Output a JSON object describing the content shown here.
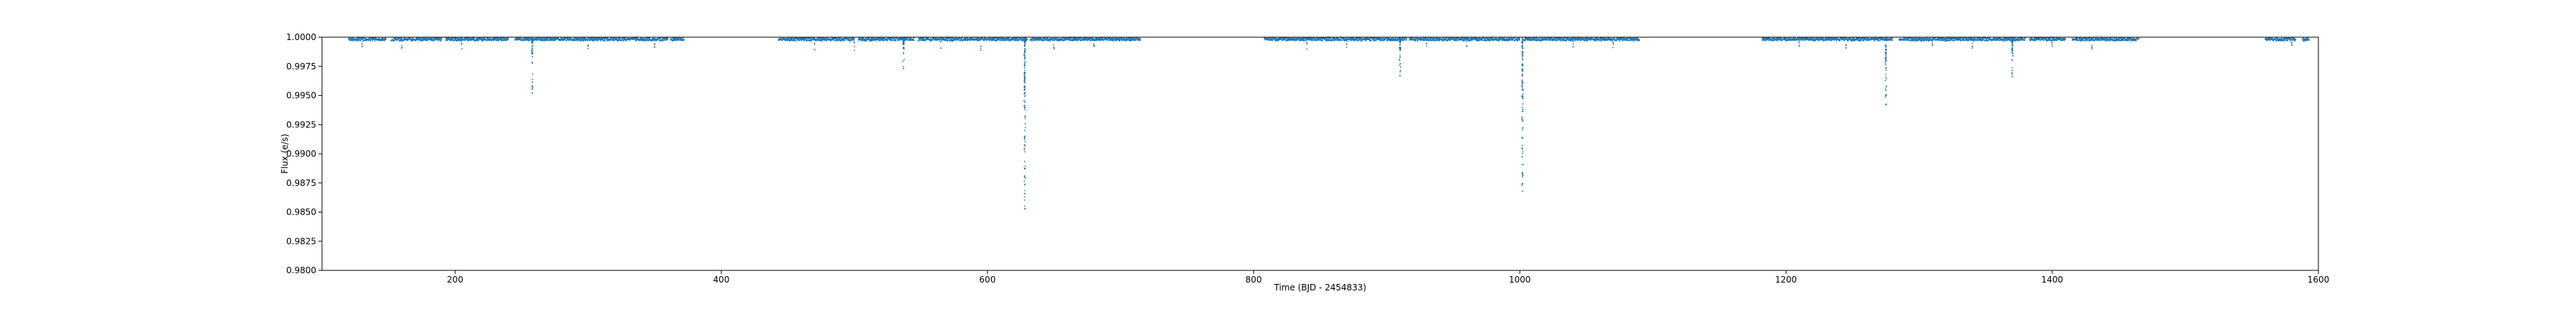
{
  "chart_data": {
    "type": "scatter",
    "title": "",
    "xlabel": "Time (BJD - 2454833)",
    "ylabel": "Flux (e/s)",
    "xlim": [
      100,
      1600
    ],
    "ylim": [
      0.98,
      1.0
    ],
    "x_ticks": [
      200,
      400,
      600,
      800,
      1000,
      1200,
      1400,
      1600
    ],
    "x_tick_labels": [
      "200",
      "400",
      "600",
      "800",
      "1000",
      "1200",
      "1400",
      "1600"
    ],
    "y_ticks": [
      0.98,
      0.9825,
      0.985,
      0.9875,
      0.99,
      0.9925,
      0.995,
      0.9975,
      1.0
    ],
    "y_tick_labels": [
      "0.9800",
      "0.9825",
      "0.9850",
      "0.9875",
      "0.9900",
      "0.9925",
      "0.9950",
      "0.9975",
      "1.0000"
    ],
    "grid": false,
    "legend": "none",
    "marker_color": "#1f77b4",
    "observation_segments": [
      [
        120,
        148
      ],
      [
        152,
        190
      ],
      [
        193,
        240
      ],
      [
        245,
        300
      ],
      [
        300,
        360
      ],
      [
        362,
        372
      ],
      [
        443,
        500
      ],
      [
        503,
        545
      ],
      [
        548,
        630
      ],
      [
        632,
        715
      ],
      [
        808,
        915
      ],
      [
        917,
        1000
      ],
      [
        1003,
        1090
      ],
      [
        1182,
        1280
      ],
      [
        1285,
        1380
      ],
      [
        1383,
        1410
      ],
      [
        1415,
        1465
      ],
      [
        1560,
        1583
      ],
      [
        1588,
        1593
      ]
    ],
    "baseline_flux": 0.99995,
    "transit_dips": [
      {
        "x": 258,
        "min_flux": 0.9952
      },
      {
        "x": 537,
        "min_flux": 0.9973
      },
      {
        "x": 628,
        "min_flux": 0.9853
      },
      {
        "x": 910,
        "min_flux": 0.9967
      },
      {
        "x": 1002,
        "min_flux": 0.9868
      },
      {
        "x": 1275,
        "min_flux": 0.9942
      },
      {
        "x": 1370,
        "min_flux": 0.9966
      }
    ],
    "shallow_dips": [
      {
        "x": 130,
        "min_flux": 0.9991
      },
      {
        "x": 160,
        "min_flux": 0.999
      },
      {
        "x": 205,
        "min_flux": 0.9989
      },
      {
        "x": 300,
        "min_flux": 0.999
      },
      {
        "x": 350,
        "min_flux": 0.999
      },
      {
        "x": 470,
        "min_flux": 0.9989
      },
      {
        "x": 500,
        "min_flux": 0.9988
      },
      {
        "x": 565,
        "min_flux": 0.999
      },
      {
        "x": 595,
        "min_flux": 0.9988
      },
      {
        "x": 650,
        "min_flux": 0.9989
      },
      {
        "x": 680,
        "min_flux": 0.9989
      },
      {
        "x": 840,
        "min_flux": 0.9989
      },
      {
        "x": 870,
        "min_flux": 0.999
      },
      {
        "x": 930,
        "min_flux": 0.999
      },
      {
        "x": 960,
        "min_flux": 0.9989
      },
      {
        "x": 1040,
        "min_flux": 0.999
      },
      {
        "x": 1070,
        "min_flux": 0.9991
      },
      {
        "x": 1210,
        "min_flux": 0.999
      },
      {
        "x": 1245,
        "min_flux": 0.9989
      },
      {
        "x": 1310,
        "min_flux": 0.9989
      },
      {
        "x": 1340,
        "min_flux": 0.999
      },
      {
        "x": 1400,
        "min_flux": 0.999
      },
      {
        "x": 1430,
        "min_flux": 0.999
      },
      {
        "x": 1580,
        "min_flux": 0.9992
      }
    ]
  }
}
